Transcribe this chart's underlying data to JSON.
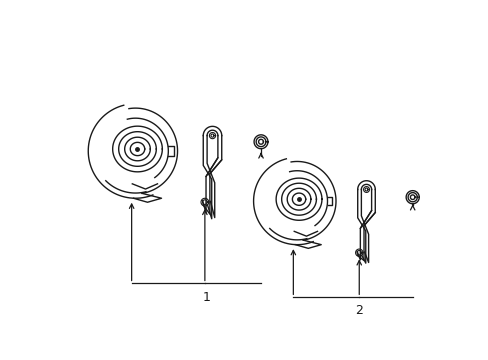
{
  "background_color": "#ffffff",
  "line_color": "#1a1a1a",
  "figsize": [
    4.89,
    3.6
  ],
  "dpi": 100,
  "label1": "1",
  "label2": "2"
}
